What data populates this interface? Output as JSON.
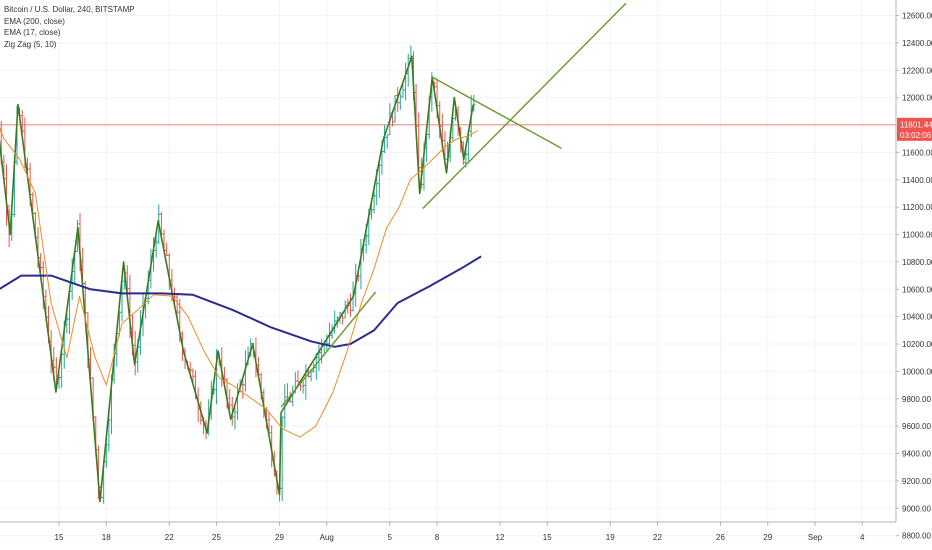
{
  "header": {
    "title": "Bitcoin / U.S. Dollar, 240, BITSTAMP",
    "indicators": [
      "EMA (200, close)",
      "EMA (17, close)",
      "Zig Zag (5, 10)"
    ]
  },
  "price_label": {
    "value": "11801.44",
    "countdown": "03:02:06",
    "color": "#ef5350"
  },
  "colors": {
    "up": "#26a69a",
    "down": "#ef5350",
    "ema200": "#2b2b8c",
    "ema17": "#f28b24",
    "zigzag": "#3c7a1e",
    "pattern": "#6b9a2a",
    "priceline": "#ef5350",
    "grid": "#f0f3fa"
  },
  "chart_data": {
    "type": "line",
    "title": "Bitcoin / U.S. Dollar, 240, BITSTAMP",
    "ylim": [
      8700,
      12700
    ],
    "y_ticks": [
      8800,
      9000,
      9200,
      9400,
      9600,
      9800,
      10000,
      10200,
      10400,
      10600,
      10800,
      11000,
      11200,
      11400,
      11600,
      11800,
      12000,
      12200,
      12400,
      12600
    ],
    "x_axis_ticks": [
      {
        "day": 0,
        "label": "15"
      },
      {
        "day": 3,
        "label": "18"
      },
      {
        "day": 7,
        "label": "22"
      },
      {
        "day": 10,
        "label": "25"
      },
      {
        "day": 14,
        "label": "29"
      },
      {
        "day": 17,
        "label": "Aug"
      },
      {
        "day": 21,
        "label": "5"
      },
      {
        "day": 24,
        "label": "8"
      },
      {
        "day": 28,
        "label": "12"
      },
      {
        "day": 31,
        "label": "15"
      },
      {
        "day": 35,
        "label": "19"
      },
      {
        "day": 38,
        "label": "22"
      },
      {
        "day": 42,
        "label": "26"
      },
      {
        "day": 45,
        "label": "29"
      },
      {
        "day": 48,
        "label": "Sep"
      },
      {
        "day": 51,
        "label": "4"
      }
    ],
    "current_price": 11801.44,
    "series": [
      {
        "name": "Zig Zag (5, 10)",
        "points": [
          [
            -4.1,
            12000
          ],
          [
            -3.1,
            11000
          ],
          [
            -2.6,
            11950
          ],
          [
            -0.2,
            9850
          ],
          [
            1.2,
            11050
          ],
          [
            2.6,
            9050
          ],
          [
            4.1,
            10800
          ],
          [
            4.8,
            10050
          ],
          [
            6.3,
            11100
          ],
          [
            7.9,
            10150
          ],
          [
            9.4,
            9550
          ],
          [
            10.1,
            10150
          ],
          [
            10.9,
            9650
          ],
          [
            12.3,
            10200
          ],
          [
            14.0,
            9100
          ],
          [
            14.1,
            9700
          ],
          [
            18.7,
            10550
          ],
          [
            20.6,
            11700
          ],
          [
            22.4,
            12300
          ],
          [
            22.9,
            11300
          ],
          [
            23.7,
            12150
          ],
          [
            24.6,
            11450
          ],
          [
            25.1,
            12000
          ],
          [
            25.7,
            11550
          ],
          [
            26.3,
            11950
          ]
        ]
      },
      {
        "name": "EMA (200, close)",
        "points": [
          [
            -4.5,
            10550
          ],
          [
            -2.4,
            10700
          ],
          [
            -0.5,
            10700
          ],
          [
            2.0,
            10600
          ],
          [
            4.0,
            10570
          ],
          [
            6.5,
            10570
          ],
          [
            8.5,
            10560
          ],
          [
            11.0,
            10450
          ],
          [
            13.5,
            10320
          ],
          [
            16.0,
            10220
          ],
          [
            17.5,
            10180
          ],
          [
            18.5,
            10200
          ],
          [
            20.0,
            10300
          ],
          [
            21.5,
            10500
          ],
          [
            23.5,
            10620
          ],
          [
            25.5,
            10750
          ],
          [
            26.8,
            10840
          ]
        ]
      },
      {
        "name": "EMA (17, close)",
        "points": [
          [
            -4.5,
            12000
          ],
          [
            -3.5,
            11700
          ],
          [
            -2.5,
            11550
          ],
          [
            -1.5,
            11300
          ],
          [
            -0.5,
            10500
          ],
          [
            0.5,
            10100
          ],
          [
            1.3,
            10550
          ],
          [
            2.3,
            10100
          ],
          [
            3.0,
            9900
          ],
          [
            4.0,
            10350
          ],
          [
            5.0,
            10450
          ],
          [
            6.0,
            10560
          ],
          [
            7.2,
            10550
          ],
          [
            8.2,
            10400
          ],
          [
            9.2,
            10150
          ],
          [
            10.2,
            9950
          ],
          [
            11.0,
            9900
          ],
          [
            12.0,
            9820
          ],
          [
            13.2,
            9720
          ],
          [
            14.2,
            9580
          ],
          [
            15.3,
            9520
          ],
          [
            16.3,
            9600
          ],
          [
            17.4,
            9850
          ],
          [
            18.3,
            10150
          ],
          [
            19.2,
            10500
          ],
          [
            20.0,
            10750
          ],
          [
            20.8,
            11050
          ],
          [
            21.6,
            11200
          ],
          [
            22.3,
            11400
          ],
          [
            23.1,
            11480
          ],
          [
            23.8,
            11560
          ],
          [
            24.6,
            11650
          ],
          [
            25.3,
            11700
          ],
          [
            26.0,
            11720
          ],
          [
            26.6,
            11760
          ]
        ]
      },
      {
        "name": "Triangle upper",
        "points": [
          [
            23.7,
            12150
          ],
          [
            31.9,
            11630
          ]
        ]
      },
      {
        "name": "Triangle lower",
        "points": [
          [
            23.1,
            11190
          ],
          [
            36.0,
            12690
          ]
        ]
      },
      {
        "name": "Trend line",
        "points": [
          [
            14.1,
            9740
          ],
          [
            20.1,
            10580
          ]
        ]
      }
    ],
    "candles_note": "4h OHLC bars, up/down coloured",
    "grid": true
  }
}
